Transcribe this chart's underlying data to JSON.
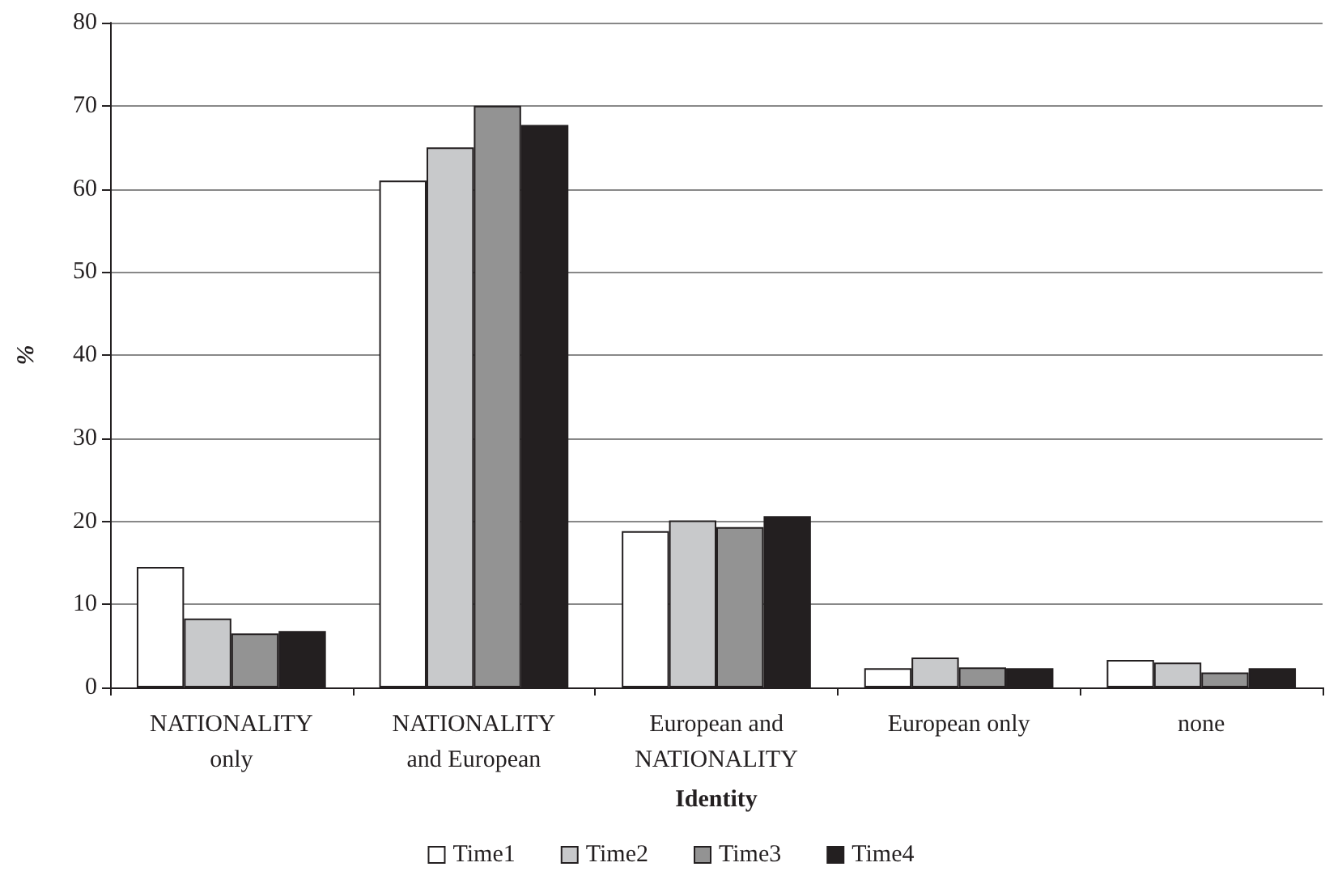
{
  "chart_data": {
    "type": "bar",
    "xlabel": "Identity",
    "ylabel": "%",
    "categories": [
      "NATIONALITY\nonly",
      "NATIONALITY\nand European",
      "European and\nNATIONALITY",
      "European only",
      "none"
    ],
    "series": [
      {
        "name": "Time1",
        "color": "#ffffff",
        "values": [
          14.5,
          61,
          18.8,
          2.3,
          3.3
        ]
      },
      {
        "name": "Time2",
        "color": "#c8c9cb",
        "values": [
          8.3,
          65,
          20.1,
          3.6,
          3.0
        ]
      },
      {
        "name": "Time3",
        "color": "#939393",
        "values": [
          6.5,
          70,
          19.3,
          2.4,
          1.8
        ]
      },
      {
        "name": "Time4",
        "color": "#231f20",
        "values": [
          6.8,
          67.7,
          20.6,
          2.3,
          2.3
        ]
      }
    ],
    "ylim": [
      0,
      80
    ],
    "yticks": [
      0,
      10,
      20,
      30,
      40,
      50,
      60,
      70,
      80
    ],
    "grid": "y",
    "legend": "bottom"
  }
}
